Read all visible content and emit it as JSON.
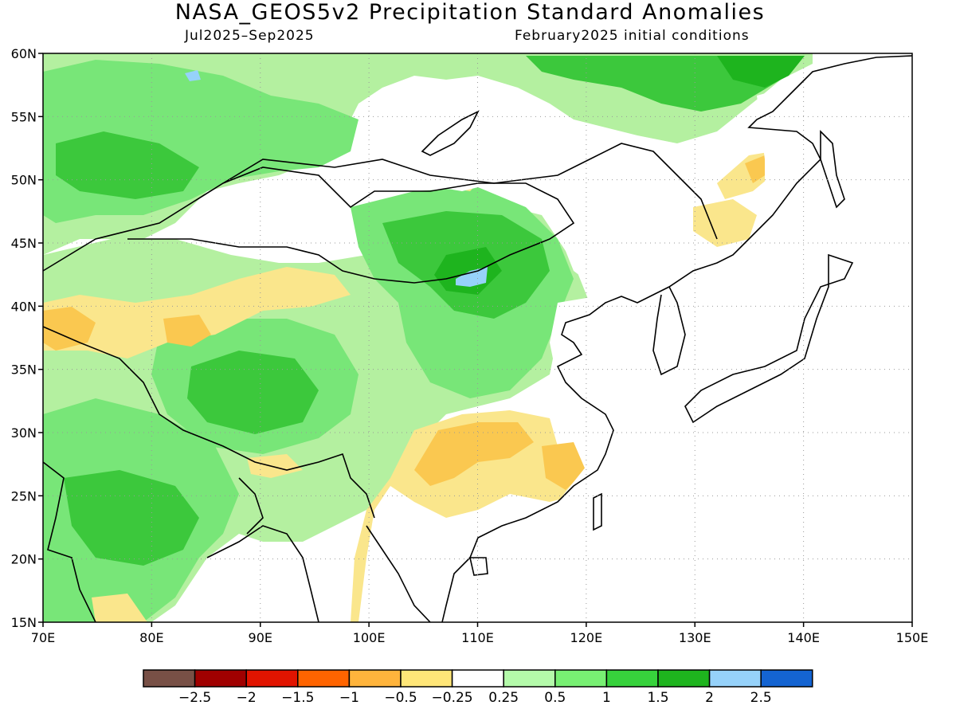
{
  "header": {
    "title": "NASA_GEOS5v2 Precipitation Standard Anomalies",
    "period": "Jul2025–Sep2025",
    "initial_conditions": "February2025 initial conditions"
  },
  "map": {
    "lon_range": [
      70,
      150
    ],
    "lat_range": [
      15,
      60
    ],
    "lon_ticks": [
      {
        "value": 70,
        "label": "70E"
      },
      {
        "value": 80,
        "label": "80E"
      },
      {
        "value": 90,
        "label": "90E"
      },
      {
        "value": 100,
        "label": "100E"
      },
      {
        "value": 110,
        "label": "110E"
      },
      {
        "value": 120,
        "label": "120E"
      },
      {
        "value": 130,
        "label": "130E"
      },
      {
        "value": 140,
        "label": "140E"
      },
      {
        "value": 150,
        "label": "150E"
      }
    ],
    "lat_ticks": [
      {
        "value": 15,
        "label": "15N"
      },
      {
        "value": 20,
        "label": "20N"
      },
      {
        "value": 25,
        "label": "25N"
      },
      {
        "value": 30,
        "label": "30N"
      },
      {
        "value": 35,
        "label": "35N"
      },
      {
        "value": 40,
        "label": "40N"
      },
      {
        "value": 45,
        "label": "45N"
      },
      {
        "value": 50,
        "label": "50N"
      },
      {
        "value": 55,
        "label": "55N"
      },
      {
        "value": 60,
        "label": "60N"
      }
    ],
    "gridlines": true,
    "colors": {
      "light_green": "#b4f0a0",
      "green": "#78e678",
      "mid_green": "#3cc83c",
      "dark_green": "#1eb41e",
      "light_blue": "#96d2fa",
      "light_yellow": "#fae68c",
      "yellow_orange": "#fac850",
      "white": "#ffffff",
      "coast": "#000000"
    }
  },
  "colorbar": {
    "colors": [
      "#785046",
      "#a00000",
      "#e11400",
      "#ff6400",
      "#ffb43c",
      "#ffe678",
      "#ffffff",
      "#b4faaa",
      "#78f073",
      "#37d23c",
      "#1eb41e",
      "#96d2fa",
      "#1464d2"
    ],
    "labels": [
      "−2.5",
      "−2",
      "−1.5",
      "−1",
      "−0.5",
      "−0.25",
      "0.25",
      "0.5",
      "1",
      "1.5",
      "2",
      "2.5"
    ]
  }
}
